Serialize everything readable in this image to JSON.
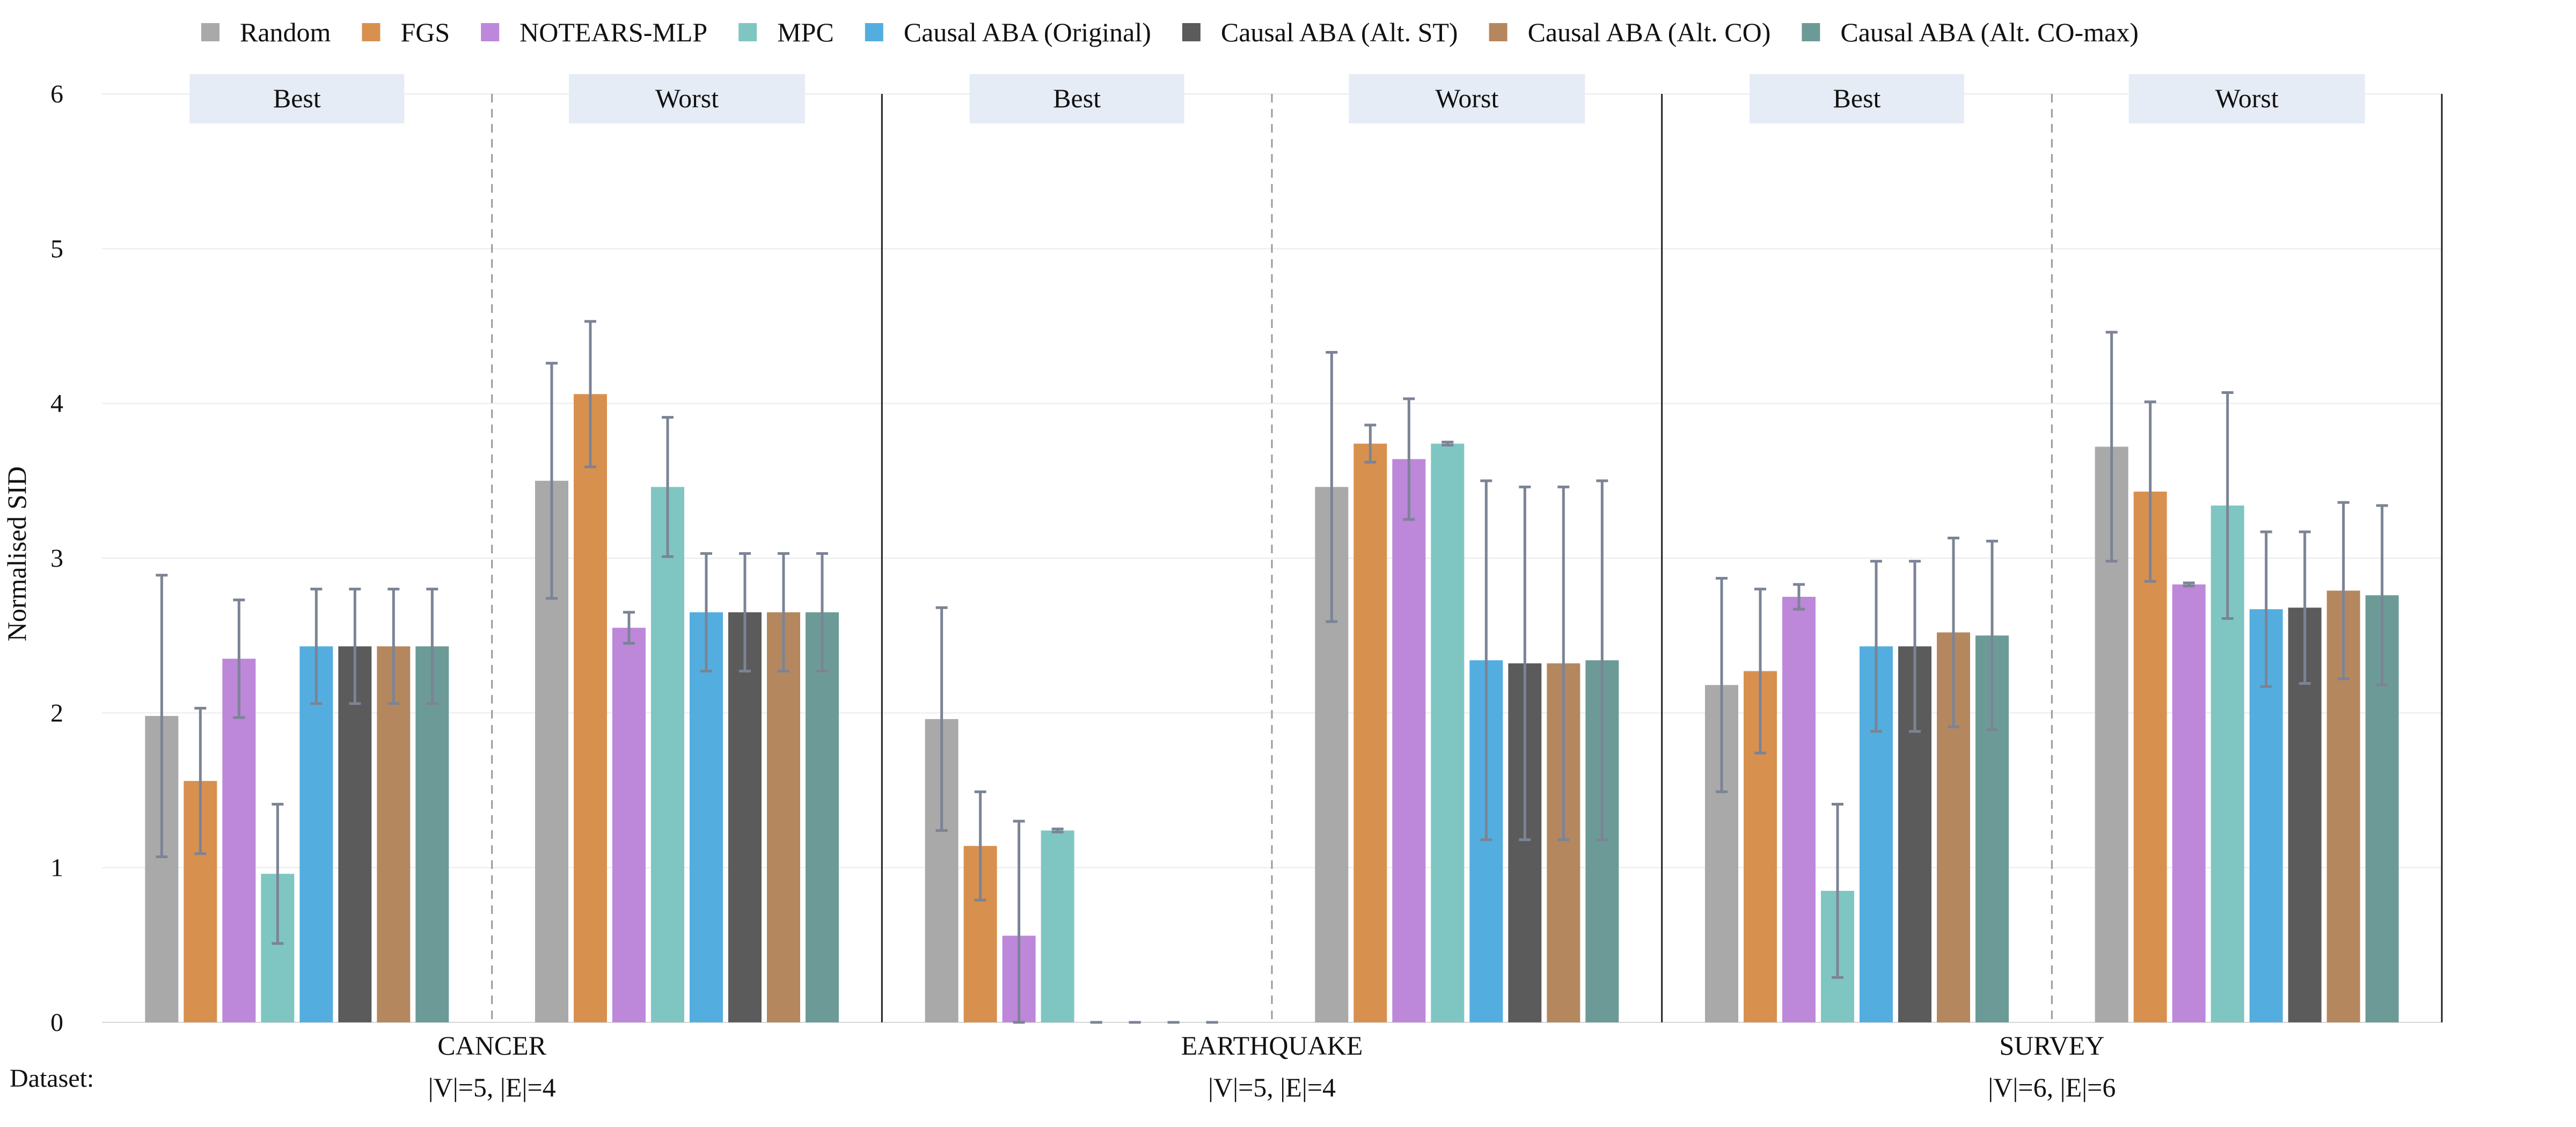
{
  "chart_data": {
    "type": "bar",
    "ylabel": "Normalised SID",
    "ylim": [
      0,
      6
    ],
    "yticks": [
      0,
      1,
      2,
      3,
      4,
      5,
      6
    ],
    "grid": true,
    "legend_position": "top",
    "dataset_prefix": "Dataset:",
    "groups": [
      "Best",
      "Worst"
    ],
    "datasets": [
      {
        "name": "CANCER",
        "size": "|V|=5, |E|=4"
      },
      {
        "name": "EARTHQUAKE",
        "size": "|V|=5, |E|=4"
      },
      {
        "name": "SURVEY",
        "size": "|V|=6, |E|=6"
      }
    ],
    "series": [
      {
        "name": "Random",
        "color": "#a9a9a9",
        "values": [
          [
            1.98,
            3.5
          ],
          [
            1.96,
            3.46
          ],
          [
            2.18,
            3.72
          ]
        ],
        "err": [
          [
            0.91,
            0.76
          ],
          [
            0.72,
            0.87
          ],
          [
            0.69,
            0.74
          ]
        ]
      },
      {
        "name": "FGS",
        "color": "#d8904f",
        "values": [
          [
            1.56,
            4.06
          ],
          [
            1.14,
            3.74
          ],
          [
            2.27,
            3.43
          ]
        ],
        "err": [
          [
            0.47,
            0.47
          ],
          [
            0.35,
            0.12
          ],
          [
            0.53,
            0.58
          ]
        ]
      },
      {
        "name": "NOTEARS-MLP",
        "color": "#bd87da",
        "values": [
          [
            2.35,
            2.55
          ],
          [
            0.56,
            3.64
          ],
          [
            2.75,
            2.83
          ]
        ],
        "err": [
          [
            0.38,
            0.1
          ],
          [
            0.74,
            0.39
          ],
          [
            0.08,
            0.01
          ]
        ]
      },
      {
        "name": "MPC",
        "color": "#7fc6c2",
        "values": [
          [
            0.96,
            3.46
          ],
          [
            1.24,
            3.74
          ],
          [
            0.85,
            3.34
          ]
        ],
        "err": [
          [
            0.45,
            0.45
          ],
          [
            0.01,
            0.01
          ],
          [
            0.56,
            0.73
          ]
        ]
      },
      {
        "name": "Causal ABA (Original)",
        "color": "#53aedf",
        "values": [
          [
            2.43,
            2.65
          ],
          [
            0.0,
            2.34
          ],
          [
            2.43,
            2.67
          ]
        ],
        "err": [
          [
            0.37,
            0.38
          ],
          [
            0.0,
            1.16
          ],
          [
            0.55,
            0.5
          ]
        ]
      },
      {
        "name": "Causal ABA (Alt. ST)",
        "color": "#5b5b5b",
        "values": [
          [
            2.43,
            2.65
          ],
          [
            0.0,
            2.32
          ],
          [
            2.43,
            2.68
          ]
        ],
        "err": [
          [
            0.37,
            0.38
          ],
          [
            0.0,
            1.14
          ],
          [
            0.55,
            0.49
          ]
        ]
      },
      {
        "name": "Causal ABA (Alt. CO)",
        "color": "#b5875e",
        "values": [
          [
            2.43,
            2.65
          ],
          [
            0.0,
            2.32
          ],
          [
            2.52,
            2.79
          ]
        ],
        "err": [
          [
            0.37,
            0.38
          ],
          [
            0.0,
            1.14
          ],
          [
            0.61,
            0.57
          ]
        ]
      },
      {
        "name": "Causal ABA (Alt. CO-max)",
        "color": "#6c9b97",
        "values": [
          [
            2.43,
            2.65
          ],
          [
            0.0,
            2.34
          ],
          [
            2.5,
            2.76
          ]
        ],
        "err": [
          [
            0.37,
            0.38
          ],
          [
            0.0,
            1.16
          ],
          [
            0.61,
            0.58
          ]
        ]
      }
    ]
  }
}
